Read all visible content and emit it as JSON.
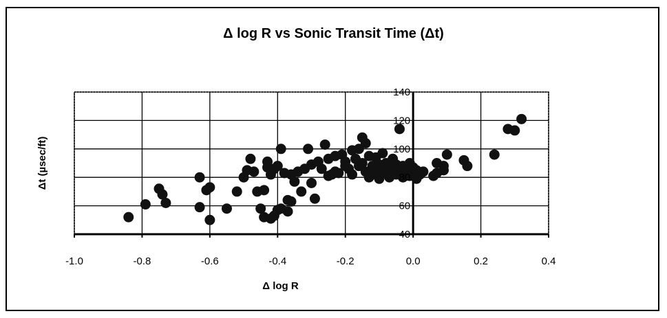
{
  "chart_data": {
    "type": "scatter",
    "title": "Δ log R vs Sonic Transit Time (Δt)",
    "xlabel": "Δ log R",
    "ylabel": "Δt (µsec/ft)",
    "xlim": [
      -1.0,
      0.4
    ],
    "ylim": [
      40,
      140
    ],
    "x_ticks": [
      "-1.0",
      "-0.8",
      "-0.6",
      "-0.4",
      "-0.2",
      "0.0",
      "0.2",
      "0.4"
    ],
    "y_ticks": [
      "40",
      "60",
      "80",
      "100",
      "120",
      "140"
    ],
    "grid": true,
    "legend": "none",
    "marker_color": "#111111",
    "points": [
      [
        -0.84,
        52
      ],
      [
        -0.79,
        61
      ],
      [
        -0.75,
        72
      ],
      [
        -0.74,
        68
      ],
      [
        -0.73,
        62
      ],
      [
        -0.63,
        80
      ],
      [
        -0.63,
        59
      ],
      [
        -0.61,
        71
      ],
      [
        -0.6,
        73
      ],
      [
        -0.6,
        50
      ],
      [
        -0.55,
        58
      ],
      [
        -0.52,
        70
      ],
      [
        -0.5,
        80
      ],
      [
        -0.49,
        85
      ],
      [
        -0.48,
        93
      ],
      [
        -0.47,
        84
      ],
      [
        -0.46,
        70
      ],
      [
        -0.45,
        58
      ],
      [
        -0.44,
        52
      ],
      [
        -0.44,
        71
      ],
      [
        -0.43,
        91
      ],
      [
        -0.43,
        87
      ],
      [
        -0.42,
        82
      ],
      [
        -0.42,
        51
      ],
      [
        -0.41,
        53
      ],
      [
        -0.41,
        86
      ],
      [
        -0.4,
        88
      ],
      [
        -0.4,
        57
      ],
      [
        -0.39,
        100
      ],
      [
        -0.39,
        58
      ],
      [
        -0.38,
        83
      ],
      [
        -0.37,
        56
      ],
      [
        -0.37,
        64
      ],
      [
        -0.36,
        63
      ],
      [
        -0.36,
        82
      ],
      [
        -0.35,
        77
      ],
      [
        -0.34,
        84
      ],
      [
        -0.33,
        70
      ],
      [
        -0.32,
        86
      ],
      [
        -0.31,
        100
      ],
      [
        -0.3,
        76
      ],
      [
        -0.3,
        89
      ],
      [
        -0.29,
        65
      ],
      [
        -0.28,
        91
      ],
      [
        -0.27,
        86
      ],
      [
        -0.26,
        103
      ],
      [
        -0.25,
        93
      ],
      [
        -0.25,
        81
      ],
      [
        -0.24,
        82
      ],
      [
        -0.23,
        95
      ],
      [
        -0.23,
        84
      ],
      [
        -0.22,
        83
      ],
      [
        -0.21,
        96
      ],
      [
        -0.2,
        88
      ],
      [
        -0.2,
        91
      ],
      [
        -0.19,
        86
      ],
      [
        -0.18,
        99
      ],
      [
        -0.18,
        82
      ],
      [
        -0.17,
        93
      ],
      [
        -0.16,
        100
      ],
      [
        -0.16,
        88
      ],
      [
        -0.15,
        108
      ],
      [
        -0.15,
        90
      ],
      [
        -0.14,
        104
      ],
      [
        -0.14,
        84
      ],
      [
        -0.13,
        95
      ],
      [
        -0.13,
        80
      ],
      [
        -0.12,
        88
      ],
      [
        -0.12,
        85
      ],
      [
        -0.11,
        94
      ],
      [
        -0.11,
        82
      ],
      [
        -0.1,
        89
      ],
      [
        -0.1,
        79
      ],
      [
        -0.09,
        86
      ],
      [
        -0.09,
        97
      ],
      [
        -0.08,
        83
      ],
      [
        -0.08,
        90
      ],
      [
        -0.07,
        85
      ],
      [
        -0.07,
        80
      ],
      [
        -0.06,
        93
      ],
      [
        -0.06,
        87
      ],
      [
        -0.05,
        82
      ],
      [
        -0.05,
        89
      ],
      [
        -0.04,
        84
      ],
      [
        -0.04,
        114
      ],
      [
        -0.03,
        88
      ],
      [
        -0.03,
        80
      ],
      [
        -0.02,
        86
      ],
      [
        -0.02,
        83
      ],
      [
        -0.01,
        90
      ],
      [
        -0.01,
        81
      ],
      [
        0.0,
        87
      ],
      [
        0.0,
        83
      ],
      [
        0.01,
        85
      ],
      [
        0.01,
        79
      ],
      [
        0.02,
        82
      ],
      [
        0.03,
        84
      ],
      [
        0.06,
        81
      ],
      [
        0.07,
        90
      ],
      [
        0.07,
        83
      ],
      [
        0.09,
        85
      ],
      [
        0.09,
        88
      ],
      [
        0.1,
        96
      ],
      [
        0.15,
        92
      ],
      [
        0.16,
        88
      ],
      [
        0.24,
        96
      ],
      [
        0.28,
        114
      ],
      [
        0.3,
        113
      ],
      [
        0.32,
        121
      ]
    ]
  }
}
